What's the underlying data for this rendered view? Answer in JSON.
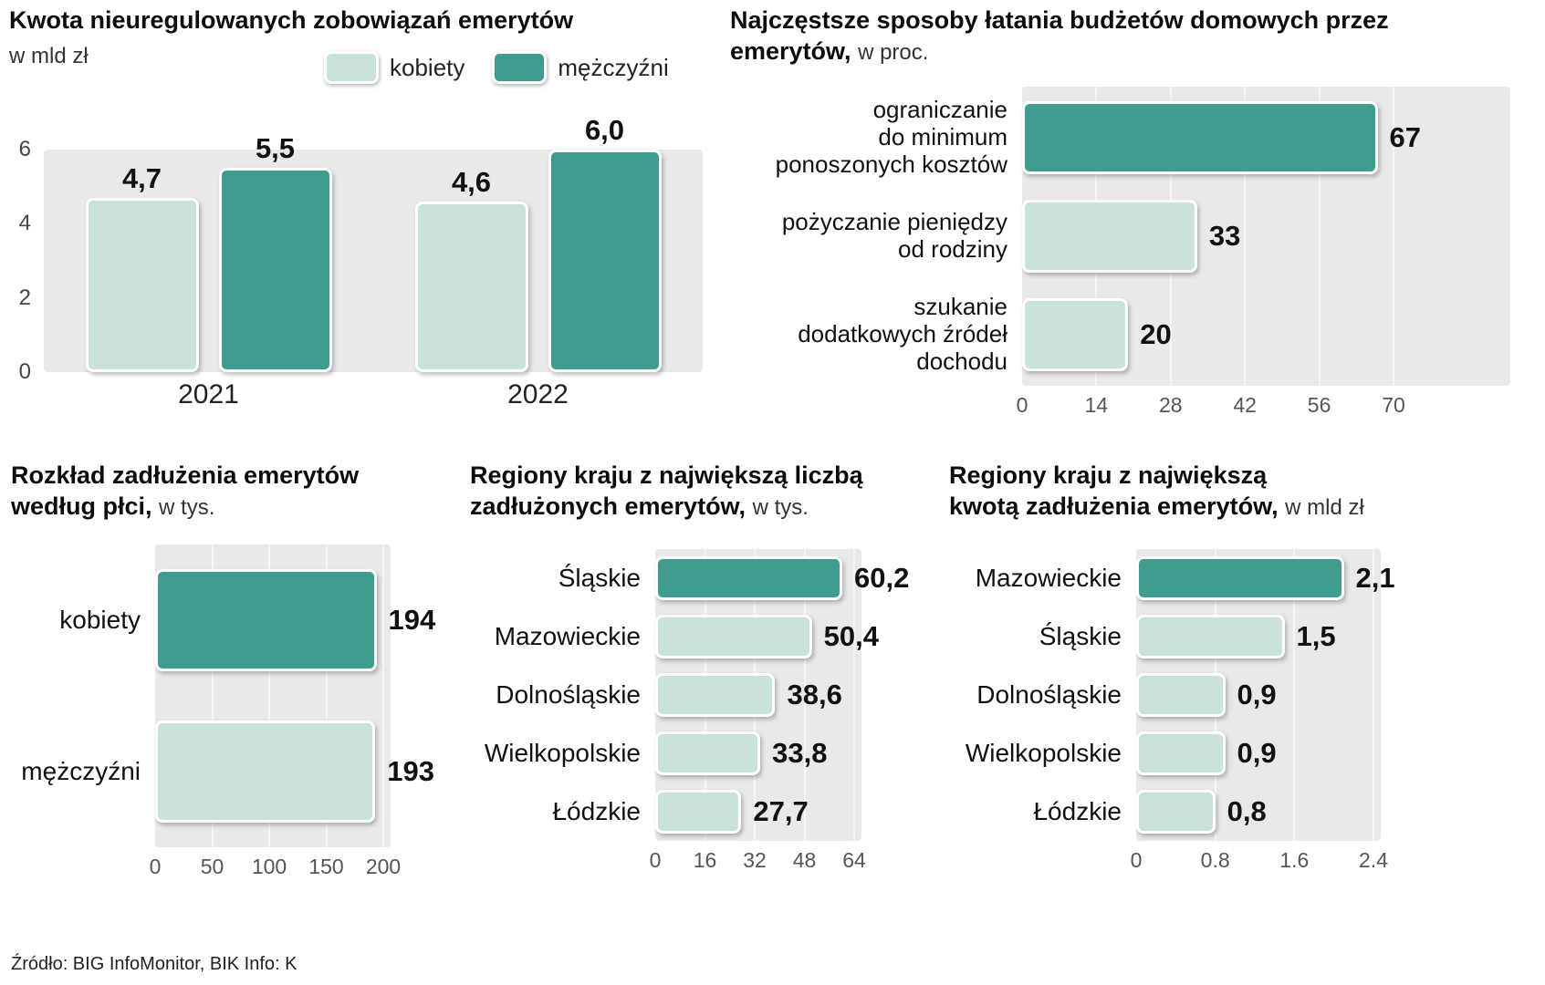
{
  "page": {
    "source": "Źródło: BIG InfoMonitor, BIK Info: K"
  },
  "colors": {
    "dark": "#3f9d8f",
    "light": "#c9e2dc",
    "plot-bg": "#e9e9e9"
  },
  "chart_data": [
    {
      "type": "bar",
      "title": "Kwota nieuregulowanych zobowiązań emerytów",
      "subtitle": "w mld zł",
      "categories": [
        "2021",
        "2022"
      ],
      "series": [
        {
          "name": "kobiety",
          "color": "light",
          "values": [
            4.7,
            4.6
          ],
          "value_labels": [
            "4,7",
            "4,6"
          ]
        },
        {
          "name": "mężczyźni",
          "color": "dark",
          "values": [
            5.5,
            6.0
          ],
          "value_labels": [
            "5,5",
            "6,0"
          ]
        }
      ],
      "ylim": [
        0,
        6
      ],
      "yticks": [
        0,
        2,
        4,
        6
      ],
      "legend_position": "top",
      "grid": false
    },
    {
      "type": "bar-horizontal",
      "title": "Najczęstsze sposoby łatania budżetów domowych przez\nemerytów,",
      "subtitle": "w proc.",
      "categories": [
        "ograniczanie\ndo minimum\nponoszonych kosztów",
        "pożyczanie pieniędzy\nod rodziny",
        "szukanie\ndodatkowych źródeł\ndochodu"
      ],
      "values": [
        67,
        33,
        20
      ],
      "value_labels": [
        "67",
        "33",
        "20"
      ],
      "bar_colors": [
        "dark",
        "light",
        "light"
      ],
      "xlim": [
        0,
        70
      ],
      "xticks": [
        "0",
        "14",
        "28",
        "42",
        "56",
        "70"
      ]
    },
    {
      "type": "bar-horizontal",
      "title": "Rozkład zadłużenia emerytów\nwedług płci,",
      "subtitle": "w tys.",
      "categories": [
        "kobiety",
        "mężczyźni"
      ],
      "values": [
        194,
        193
      ],
      "value_labels": [
        "194",
        "193"
      ],
      "bar_colors": [
        "dark",
        "light"
      ],
      "xlim": [
        0,
        200
      ],
      "xticks": [
        "0",
        "50",
        "100",
        "150",
        "200"
      ]
    },
    {
      "type": "bar-horizontal",
      "title": "Regiony kraju z największą liczbą\nzadłużonych emerytów,",
      "subtitle": "w tys.",
      "categories": [
        "Śląskie",
        "Mazowieckie",
        "Dolnośląskie",
        "Wielkopolskie",
        "Łódzkie"
      ],
      "values": [
        60.2,
        50.4,
        38.6,
        33.8,
        27.7
      ],
      "value_labels": [
        "60,2",
        "50,4",
        "38,6",
        "33,8",
        "27,7"
      ],
      "bar_colors": [
        "dark",
        "light",
        "light",
        "light",
        "light"
      ],
      "xlim": [
        0,
        64
      ],
      "xticks": [
        "0",
        "16",
        "32",
        "48",
        "64"
      ]
    },
    {
      "type": "bar-horizontal",
      "title": "Regiony kraju z największą\nkwotą zadłużenia emerytów,",
      "subtitle": "w mld zł",
      "categories": [
        "Mazowieckie",
        "Śląskie",
        "Dolnośląskie",
        "Wielkopolskie",
        "Łódzkie"
      ],
      "values": [
        2.1,
        1.5,
        0.9,
        0.9,
        0.8
      ],
      "value_labels": [
        "2,1",
        "1,5",
        "0,9",
        "0,9",
        "0,8"
      ],
      "bar_colors": [
        "dark",
        "light",
        "light",
        "light",
        "light"
      ],
      "xlim": [
        0,
        2.4
      ],
      "xticks": [
        "0",
        "0.8",
        "1.6",
        "2.4"
      ]
    }
  ]
}
